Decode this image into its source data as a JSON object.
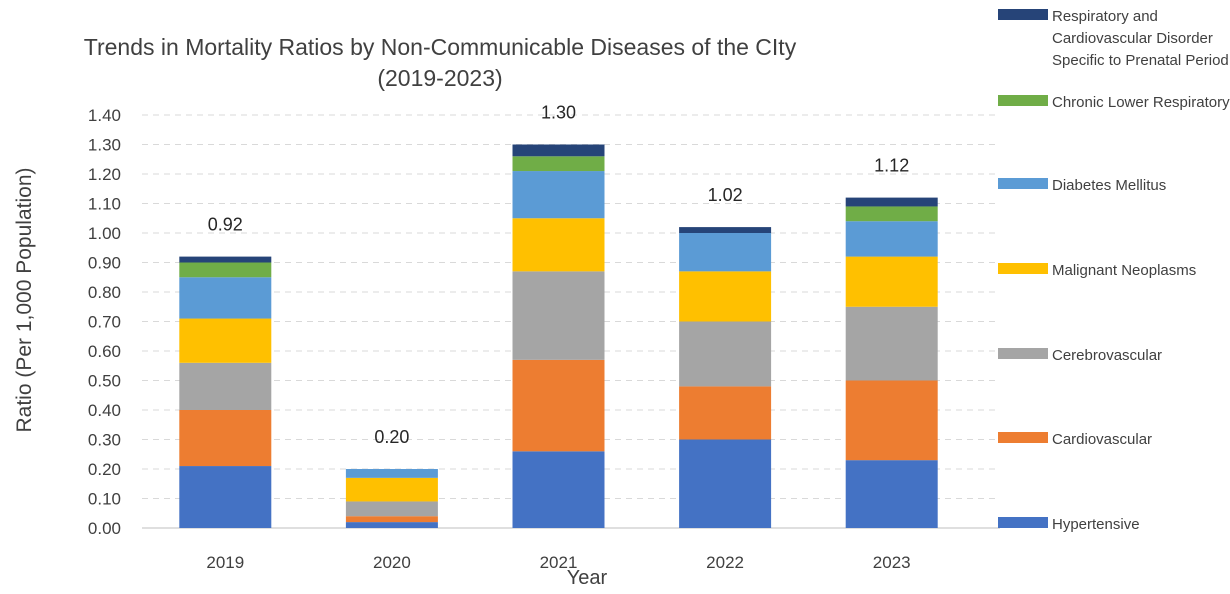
{
  "chart_data": {
    "type": "bar",
    "stacked": true,
    "title": "Trends in Mortality Ratios by Non-Communicable Diseases of the CIty",
    "subtitle": "(2019-2023)",
    "xlabel": "Year",
    "ylabel": "Ratio (Per 1,000 Population)",
    "ylim": [
      0,
      1.4
    ],
    "yticks": [
      "0.00",
      "0.10",
      "0.20",
      "0.30",
      "0.40",
      "0.50",
      "0.60",
      "0.70",
      "0.80",
      "0.90",
      "1.00",
      "1.10",
      "1.20",
      "1.30",
      "1.40"
    ],
    "grid": true,
    "legend_position": "right",
    "categories": [
      "2019",
      "2020",
      "2021",
      "2022",
      "2023"
    ],
    "totals": [
      "0.92",
      "0.20",
      "1.30",
      "1.02",
      "1.12"
    ],
    "series": [
      {
        "name": "Hypertensive",
        "color": "#4472c4",
        "values": [
          0.21,
          0.02,
          0.26,
          0.3,
          0.23
        ]
      },
      {
        "name": "Cardiovascular",
        "color": "#ed7d31",
        "values": [
          0.19,
          0.02,
          0.31,
          0.18,
          0.27
        ]
      },
      {
        "name": "Cerebrovascular",
        "color": "#a5a5a5",
        "values": [
          0.16,
          0.05,
          0.3,
          0.22,
          0.25
        ]
      },
      {
        "name": "Malignant Neoplasms",
        "color": "#ffc000",
        "values": [
          0.15,
          0.08,
          0.18,
          0.17,
          0.17
        ]
      },
      {
        "name": "Diabetes Mellitus",
        "color": "#5b9bd5",
        "values": [
          0.14,
          0.03,
          0.16,
          0.13,
          0.12
        ]
      },
      {
        "name": "Chronic Lower Respiratory",
        "color": "#70ad47",
        "values": [
          0.05,
          0.0,
          0.05,
          0.0,
          0.05
        ]
      },
      {
        "name": "Respiratory and Cardiovascular Disorder Specific to Prenatal Period",
        "color": "#264478",
        "values": [
          0.02,
          0.0,
          0.04,
          0.02,
          0.03
        ]
      }
    ]
  }
}
